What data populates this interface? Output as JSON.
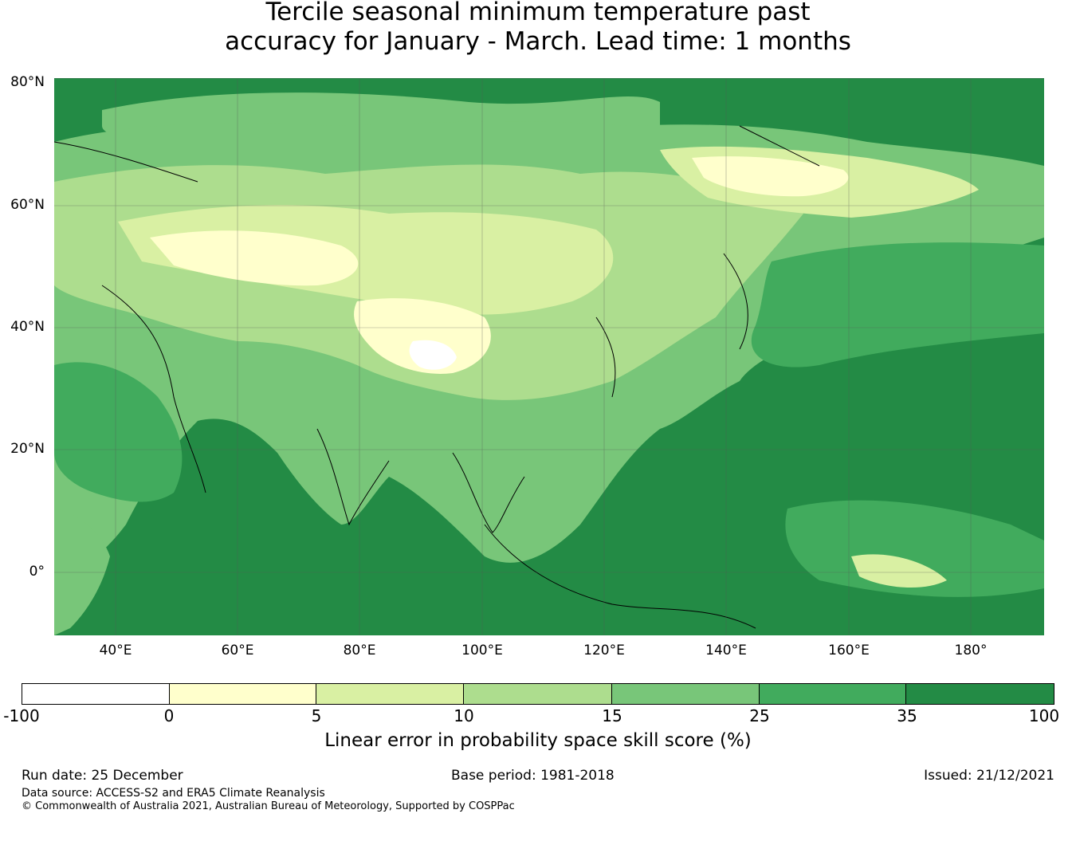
{
  "title": {
    "line1": "Tercile seasonal minimum temperature past",
    "line2": "accuracy for January - March. Lead time: 1 months"
  },
  "map": {
    "region": "Asia / Western Pacific",
    "lat_range": [
      -10,
      80
    ],
    "lon_range": [
      30,
      192
    ],
    "lat_labels": [
      "80°N",
      "60°N",
      "40°N",
      "20°N",
      "0°"
    ],
    "lon_labels": [
      "40°E",
      "60°E",
      "80°E",
      "100°E",
      "120°E",
      "140°E",
      "160°E",
      "180°"
    ]
  },
  "colorbar": {
    "label": "Linear error in probability space skill score (%)",
    "bins": [
      {
        "from": "-100",
        "to": "0",
        "color": "#ffffff"
      },
      {
        "from": "0",
        "to": "5",
        "color": "#ffffcc"
      },
      {
        "from": "5",
        "to": "10",
        "color": "#d9f0a3"
      },
      {
        "from": "10",
        "to": "15",
        "color": "#addd8e"
      },
      {
        "from": "15",
        "to": "25",
        "color": "#78c679"
      },
      {
        "from": "25",
        "to": "35",
        "color": "#41ab5d"
      },
      {
        "from": "35",
        "to": "100",
        "color": "#238b45"
      }
    ],
    "ticks": [
      "-100",
      "0",
      "5",
      "10",
      "15",
      "25",
      "35",
      "100"
    ]
  },
  "footer": {
    "run_date": "Run date: 25 December",
    "base_period": "Base period: 1981-2018",
    "issued": "Issued: 21/12/2021",
    "data_source": "Data source: ACCESS-S2 and ERA5 Climate Reanalysis",
    "copyright": "© Commonwealth of Australia 2021, Australian Bureau of Meteorology, Supported by COSPPac"
  }
}
